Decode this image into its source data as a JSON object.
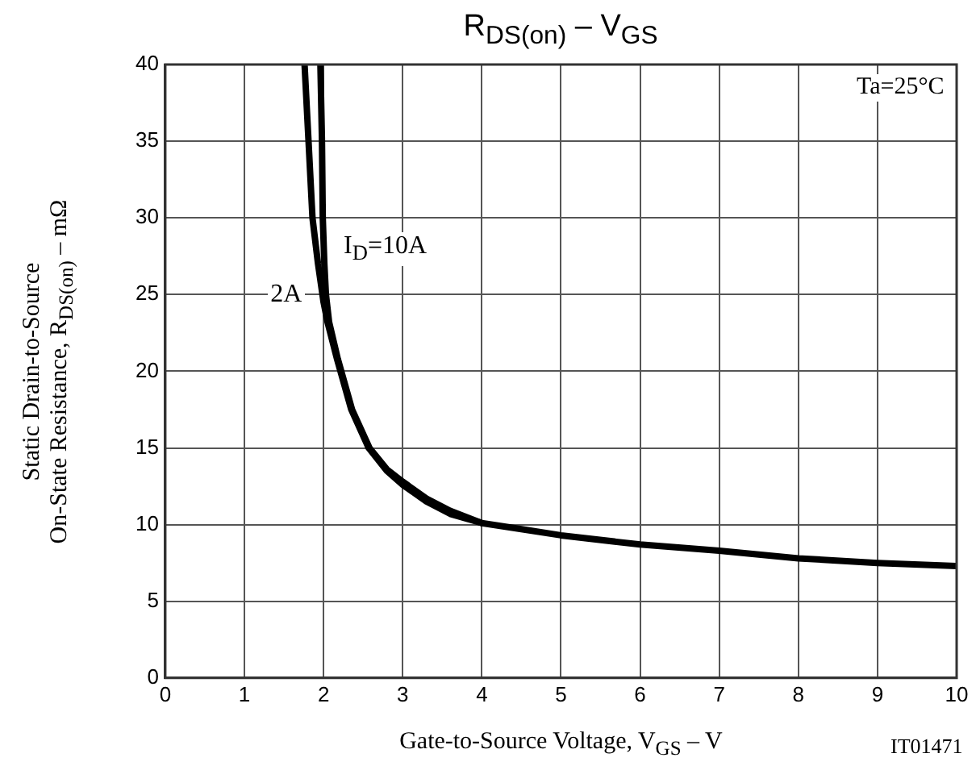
{
  "chart_data": {
    "type": "line",
    "title": "R$_{DS(on)}$ – V$_{GS}$",
    "xlabel": "Gate-to-Source Voltage, V$_{GS}$  –  V",
    "ylabel": "Static Drain-to-Source\nOn-State Resistance, R$_{DS(on)}$ – mΩ",
    "series": [
      {
        "color": "#000000",
        "x": [
          1.76,
          1.81,
          1.86,
          1.93,
          2.0,
          2.05,
          2.17,
          2.35,
          2.57,
          2.8,
          3.0,
          3.3,
          3.6,
          4.0,
          4.5,
          5.0,
          6.0,
          7.0,
          8.0,
          9.0,
          10.0
        ],
        "values": [
          40,
          35,
          30,
          27,
          24.5,
          23.2,
          20.8,
          17.5,
          15,
          13.5,
          12.6,
          11.5,
          10.7,
          10.1,
          9.7,
          9.3,
          8.7,
          8.3,
          7.8,
          7.5,
          7.3
        ]
      },
      {
        "color": "#000000",
        "x": [
          1.96,
          1.98,
          1.99,
          2.01,
          2.03,
          2.07,
          2.18,
          2.36,
          2.58,
          2.8,
          3.0,
          3.3,
          3.6,
          4.0
        ],
        "values": [
          40,
          35,
          30,
          27,
          25,
          23.2,
          20.8,
          17.5,
          15,
          13.6,
          12.8,
          11.7,
          10.9,
          10.1
        ]
      }
    ],
    "xlim": [
      0,
      10
    ],
    "xticks": [
      0,
      1,
      2,
      3,
      4,
      5,
      6,
      7,
      8,
      9,
      10
    ],
    "ylim": [
      0,
      40
    ],
    "yticks": [
      0,
      5,
      10,
      15,
      20,
      25,
      30,
      35,
      40
    ],
    "grid": true,
    "legend": false,
    "marker": "none",
    "line_style": "solid",
    "annotations": [
      "Ta=25°C",
      "IT01471",
      {
        "text": "I$_{D}$=10A",
        "x": 2.05,
        "y": 28
      },
      {
        "text": "2A",
        "x": 1.9,
        "y": 25
      }
    ]
  }
}
